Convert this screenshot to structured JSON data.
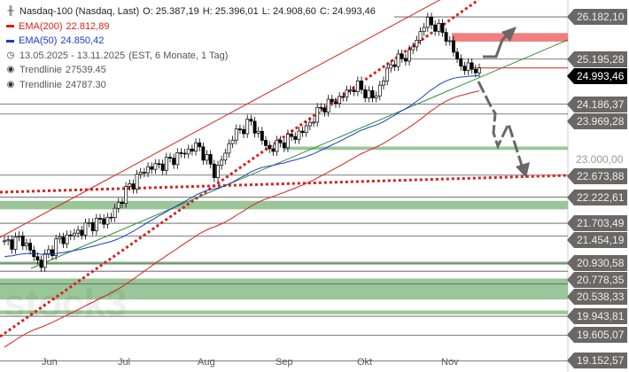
{
  "legend": {
    "title": "Nasdaq-100 (Nasdaq, Last)",
    "open": "O: 25.387,19",
    "high": "H: 25.396,01",
    "low": "L: 24.908,60",
    "close": "C: 24.993,46",
    "ema200_label": "EMA(200)",
    "ema200_value": "22.812,89",
    "ema50_label": "EMA(50)",
    "ema50_value": "24.850,42",
    "range": "13.05.2025 - 13.11.2025",
    "range_info": "(EST, 6 Monate, 1 Tag)",
    "trend1_label": "Trendlinie",
    "trend1_value": "27539.45",
    "trend2_label": "Trendlinie",
    "trend2_value": "24787.30"
  },
  "colors": {
    "up": "#ffffff",
    "down": "#000000",
    "ema200": "#d9201e",
    "ema50": "#1a3cc9",
    "trend": "#2e8b2e",
    "resist": "#f08080",
    "support": "#8fc08f",
    "arrow": "#6b6766"
  },
  "price_tags": [
    "26.182,10",
    "25.195,28",
    "24.993,46",
    "24.186,37",
    "23.969,28",
    "22.673,88",
    "22.222,61",
    "21.703,49",
    "21.454,19",
    "20.930,58",
    "20.778,35",
    "20.538,33",
    "19.943,81",
    "19.605,07",
    "19.152,57"
  ],
  "plain_tick": "23.000,00",
  "months": [
    "Jun",
    "Jul",
    "Aug",
    "Sep",
    "Okt",
    "Nov"
  ],
  "watermark": "stock3",
  "chart_data": {
    "type": "candlestick",
    "title": "Nasdaq-100 (Nasdaq, Last)",
    "scale": "log",
    "ylim": [
      19000,
      26700
    ],
    "levels": [
      26182.1,
      25195.28,
      24186.37,
      23969.28,
      22673.88,
      22222.61,
      21703.49,
      21454.19,
      20930.58,
      20778.35,
      20538.33,
      19943.81,
      19605.07,
      19152.57
    ],
    "resistance_zone": [
      25600,
      25800
    ],
    "support_zones": [
      [
        23200,
        23270
      ],
      [
        21980,
        22150
      ],
      [
        20900,
        20960
      ],
      [
        20250,
        20640
      ],
      [
        19980,
        20050
      ]
    ],
    "weekly_close_keypoints": [
      21300,
      21400,
      20900,
      21350,
      21500,
      21700,
      21800,
      22400,
      22800,
      22900,
      23100,
      23300,
      22700,
      23500,
      23800,
      23200,
      23400,
      23600,
      24100,
      24300,
      24600,
      24300,
      25100,
      25300,
      26100,
      25800,
      25000,
      24993
    ],
    "current_price": 24993.46
  }
}
